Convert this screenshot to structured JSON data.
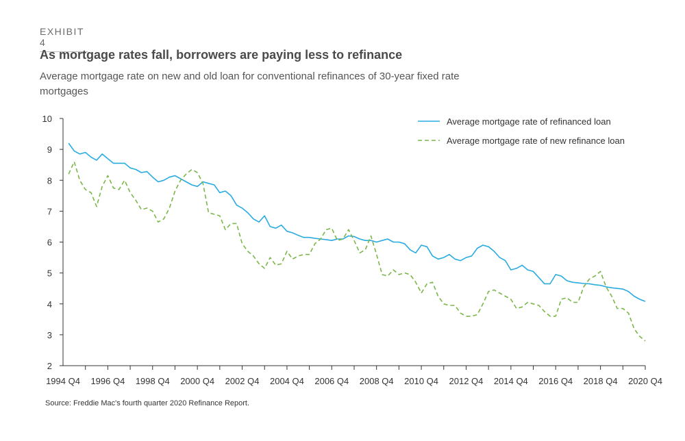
{
  "header": {
    "exhibit": "EXHIBIT 4",
    "title": "As mortgage rates fall, borrowers are paying less to refinance",
    "subtitle": "Average mortgage rate on new and old loan for conventional refinances of 30-year fixed rate mortgages"
  },
  "source": "Source: Freddie Mac's fourth quarter 2020 Refinance Report.",
  "colors": {
    "refinanced": "#29abe2",
    "new": "#7ab648",
    "axis": "#333333"
  },
  "chart_data": {
    "type": "line",
    "title": "",
    "xlabel": "",
    "ylabel": "",
    "x_start": "1994 Q4",
    "x_end": "2020 Q4",
    "x_ticks": [
      "1994 Q4",
      "1996 Q4",
      "1998 Q4",
      "2000 Q4",
      "2002 Q4",
      "2004 Q4",
      "2006 Q4",
      "2008 Q4",
      "2010 Q4",
      "2012 Q4",
      "2014 Q4",
      "2016 Q4",
      "2018 Q4",
      "2020 Q4"
    ],
    "y_ticks": [
      2,
      3,
      4,
      5,
      6,
      7,
      8,
      9,
      10
    ],
    "ylim": [
      2,
      10
    ],
    "grid": false,
    "legend_position": "top-right",
    "series": [
      {
        "name": "Average mortgage rate of refinanced loan",
        "style": "solid",
        "x": [
          "1995 Q1",
          "1995 Q2",
          "1995 Q3",
          "1995 Q4",
          "1996 Q1",
          "1996 Q2",
          "1996 Q3",
          "1996 Q4",
          "1997 Q1",
          "1997 Q2",
          "1997 Q3",
          "1997 Q4",
          "1998 Q1",
          "1998 Q2",
          "1998 Q3",
          "1998 Q4",
          "1999 Q1",
          "1999 Q2",
          "1999 Q3",
          "1999 Q4",
          "2000 Q1",
          "2000 Q2",
          "2000 Q3",
          "2000 Q4",
          "2001 Q1",
          "2001 Q2",
          "2001 Q3",
          "2001 Q4",
          "2002 Q1",
          "2002 Q2",
          "2002 Q3",
          "2002 Q4",
          "2003 Q1",
          "2003 Q2",
          "2003 Q3",
          "2003 Q4",
          "2004 Q1",
          "2004 Q2",
          "2004 Q3",
          "2004 Q4",
          "2005 Q1",
          "2005 Q2",
          "2005 Q3",
          "2005 Q4",
          "2006 Q1",
          "2006 Q2",
          "2006 Q3",
          "2006 Q4",
          "2007 Q1",
          "2007 Q2",
          "2007 Q3",
          "2007 Q4",
          "2008 Q1",
          "2008 Q2",
          "2008 Q3",
          "2008 Q4",
          "2009 Q1",
          "2009 Q2",
          "2009 Q3",
          "2009 Q4",
          "2010 Q1",
          "2010 Q2",
          "2010 Q3",
          "2010 Q4",
          "2011 Q1",
          "2011 Q2",
          "2011 Q3",
          "2011 Q4",
          "2012 Q1",
          "2012 Q2",
          "2012 Q3",
          "2012 Q4",
          "2013 Q1",
          "2013 Q2",
          "2013 Q3",
          "2013 Q4",
          "2014 Q1",
          "2014 Q2",
          "2014 Q3",
          "2014 Q4",
          "2015 Q1",
          "2015 Q2",
          "2015 Q3",
          "2015 Q4",
          "2016 Q1",
          "2016 Q2",
          "2016 Q3",
          "2016 Q4",
          "2017 Q1",
          "2017 Q2",
          "2017 Q3",
          "2017 Q4",
          "2018 Q1",
          "2018 Q2",
          "2018 Q3",
          "2018 Q4",
          "2019 Q1",
          "2019 Q2",
          "2019 Q3",
          "2019 Q4",
          "2020 Q1",
          "2020 Q2",
          "2020 Q3",
          "2020 Q4"
        ],
        "values": [
          9.2,
          8.95,
          8.85,
          8.9,
          8.75,
          8.65,
          8.85,
          8.7,
          8.55,
          8.55,
          8.55,
          8.4,
          8.35,
          8.25,
          8.28,
          8.1,
          7.95,
          8.0,
          8.1,
          8.15,
          8.05,
          7.95,
          7.85,
          7.8,
          7.95,
          7.9,
          7.85,
          7.6,
          7.65,
          7.5,
          7.2,
          7.1,
          6.95,
          6.75,
          6.65,
          6.85,
          6.5,
          6.45,
          6.55,
          6.35,
          6.3,
          6.22,
          6.15,
          6.15,
          6.12,
          6.1,
          6.08,
          6.05,
          6.1,
          6.1,
          6.2,
          6.18,
          6.1,
          6.05,
          6.05,
          6.0,
          6.05,
          6.1,
          6.0,
          6.0,
          5.95,
          5.75,
          5.65,
          5.9,
          5.85,
          5.55,
          5.45,
          5.5,
          5.6,
          5.45,
          5.4,
          5.5,
          5.55,
          5.8,
          5.9,
          5.85,
          5.7,
          5.5,
          5.4,
          5.1,
          5.15,
          5.25,
          5.1,
          5.05,
          4.85,
          4.65,
          4.65,
          4.95,
          4.9,
          4.75,
          4.7,
          4.68,
          4.66,
          4.65,
          4.62,
          4.6,
          4.55,
          4.52,
          4.5,
          4.48,
          4.4,
          4.25,
          4.15,
          4.08
        ]
      },
      {
        "name": "Average mortgage rate of new refinance loan",
        "style": "dashed",
        "x": [
          "1995 Q1",
          "1995 Q2",
          "1995 Q3",
          "1995 Q4",
          "1996 Q1",
          "1996 Q2",
          "1996 Q3",
          "1996 Q4",
          "1997 Q1",
          "1997 Q2",
          "1997 Q3",
          "1997 Q4",
          "1998 Q1",
          "1998 Q2",
          "1998 Q3",
          "1998 Q4",
          "1999 Q1",
          "1999 Q2",
          "1999 Q3",
          "1999 Q4",
          "2000 Q1",
          "2000 Q2",
          "2000 Q3",
          "2000 Q4",
          "2001 Q1",
          "2001 Q2",
          "2001 Q3",
          "2001 Q4",
          "2002 Q1",
          "2002 Q2",
          "2002 Q3",
          "2002 Q4",
          "2003 Q1",
          "2003 Q2",
          "2003 Q3",
          "2003 Q4",
          "2004 Q1",
          "2004 Q2",
          "2004 Q3",
          "2004 Q4",
          "2005 Q1",
          "2005 Q2",
          "2005 Q3",
          "2005 Q4",
          "2006 Q1",
          "2006 Q2",
          "2006 Q3",
          "2006 Q4",
          "2007 Q1",
          "2007 Q2",
          "2007 Q3",
          "2007 Q4",
          "2008 Q1",
          "2008 Q2",
          "2008 Q3",
          "2008 Q4",
          "2009 Q1",
          "2009 Q2",
          "2009 Q3",
          "2009 Q4",
          "2010 Q1",
          "2010 Q2",
          "2010 Q3",
          "2010 Q4",
          "2011 Q1",
          "2011 Q2",
          "2011 Q3",
          "2011 Q4",
          "2012 Q1",
          "2012 Q2",
          "2012 Q3",
          "2012 Q4",
          "2013 Q1",
          "2013 Q2",
          "2013 Q3",
          "2013 Q4",
          "2014 Q1",
          "2014 Q2",
          "2014 Q3",
          "2014 Q4",
          "2015 Q1",
          "2015 Q2",
          "2015 Q3",
          "2015 Q4",
          "2016 Q1",
          "2016 Q2",
          "2016 Q3",
          "2016 Q4",
          "2017 Q1",
          "2017 Q2",
          "2017 Q3",
          "2017 Q4",
          "2018 Q1",
          "2018 Q2",
          "2018 Q3",
          "2018 Q4",
          "2019 Q1",
          "2019 Q2",
          "2019 Q3",
          "2019 Q4",
          "2020 Q1",
          "2020 Q2",
          "2020 Q3",
          "2020 Q4"
        ],
        "values": [
          8.2,
          8.6,
          8.0,
          7.7,
          7.6,
          7.15,
          7.8,
          8.15,
          7.75,
          7.7,
          8.0,
          7.6,
          7.35,
          7.05,
          7.1,
          7.0,
          6.65,
          6.75,
          7.1,
          7.65,
          8.0,
          8.2,
          8.35,
          8.25,
          7.9,
          6.95,
          6.9,
          6.85,
          6.4,
          6.6,
          6.6,
          5.95,
          5.7,
          5.55,
          5.3,
          5.15,
          5.5,
          5.25,
          5.3,
          5.7,
          5.45,
          5.55,
          5.6,
          5.6,
          5.95,
          6.1,
          6.4,
          6.45,
          6.05,
          6.1,
          6.4,
          6.05,
          5.65,
          5.75,
          6.2,
          5.6,
          4.95,
          4.9,
          5.1,
          4.95,
          5.0,
          4.95,
          4.7,
          4.35,
          4.65,
          4.7,
          4.25,
          4.0,
          3.95,
          3.95,
          3.7,
          3.6,
          3.6,
          3.65,
          4.0,
          4.4,
          4.45,
          4.35,
          4.25,
          4.15,
          3.85,
          3.9,
          4.05,
          4.0,
          3.95,
          3.75,
          3.6,
          3.6,
          4.15,
          4.2,
          4.05,
          4.05,
          4.55,
          4.8,
          4.9,
          5.05,
          4.55,
          4.25,
          3.85,
          3.85,
          3.7,
          3.2,
          2.95,
          2.8
        ]
      }
    ]
  }
}
